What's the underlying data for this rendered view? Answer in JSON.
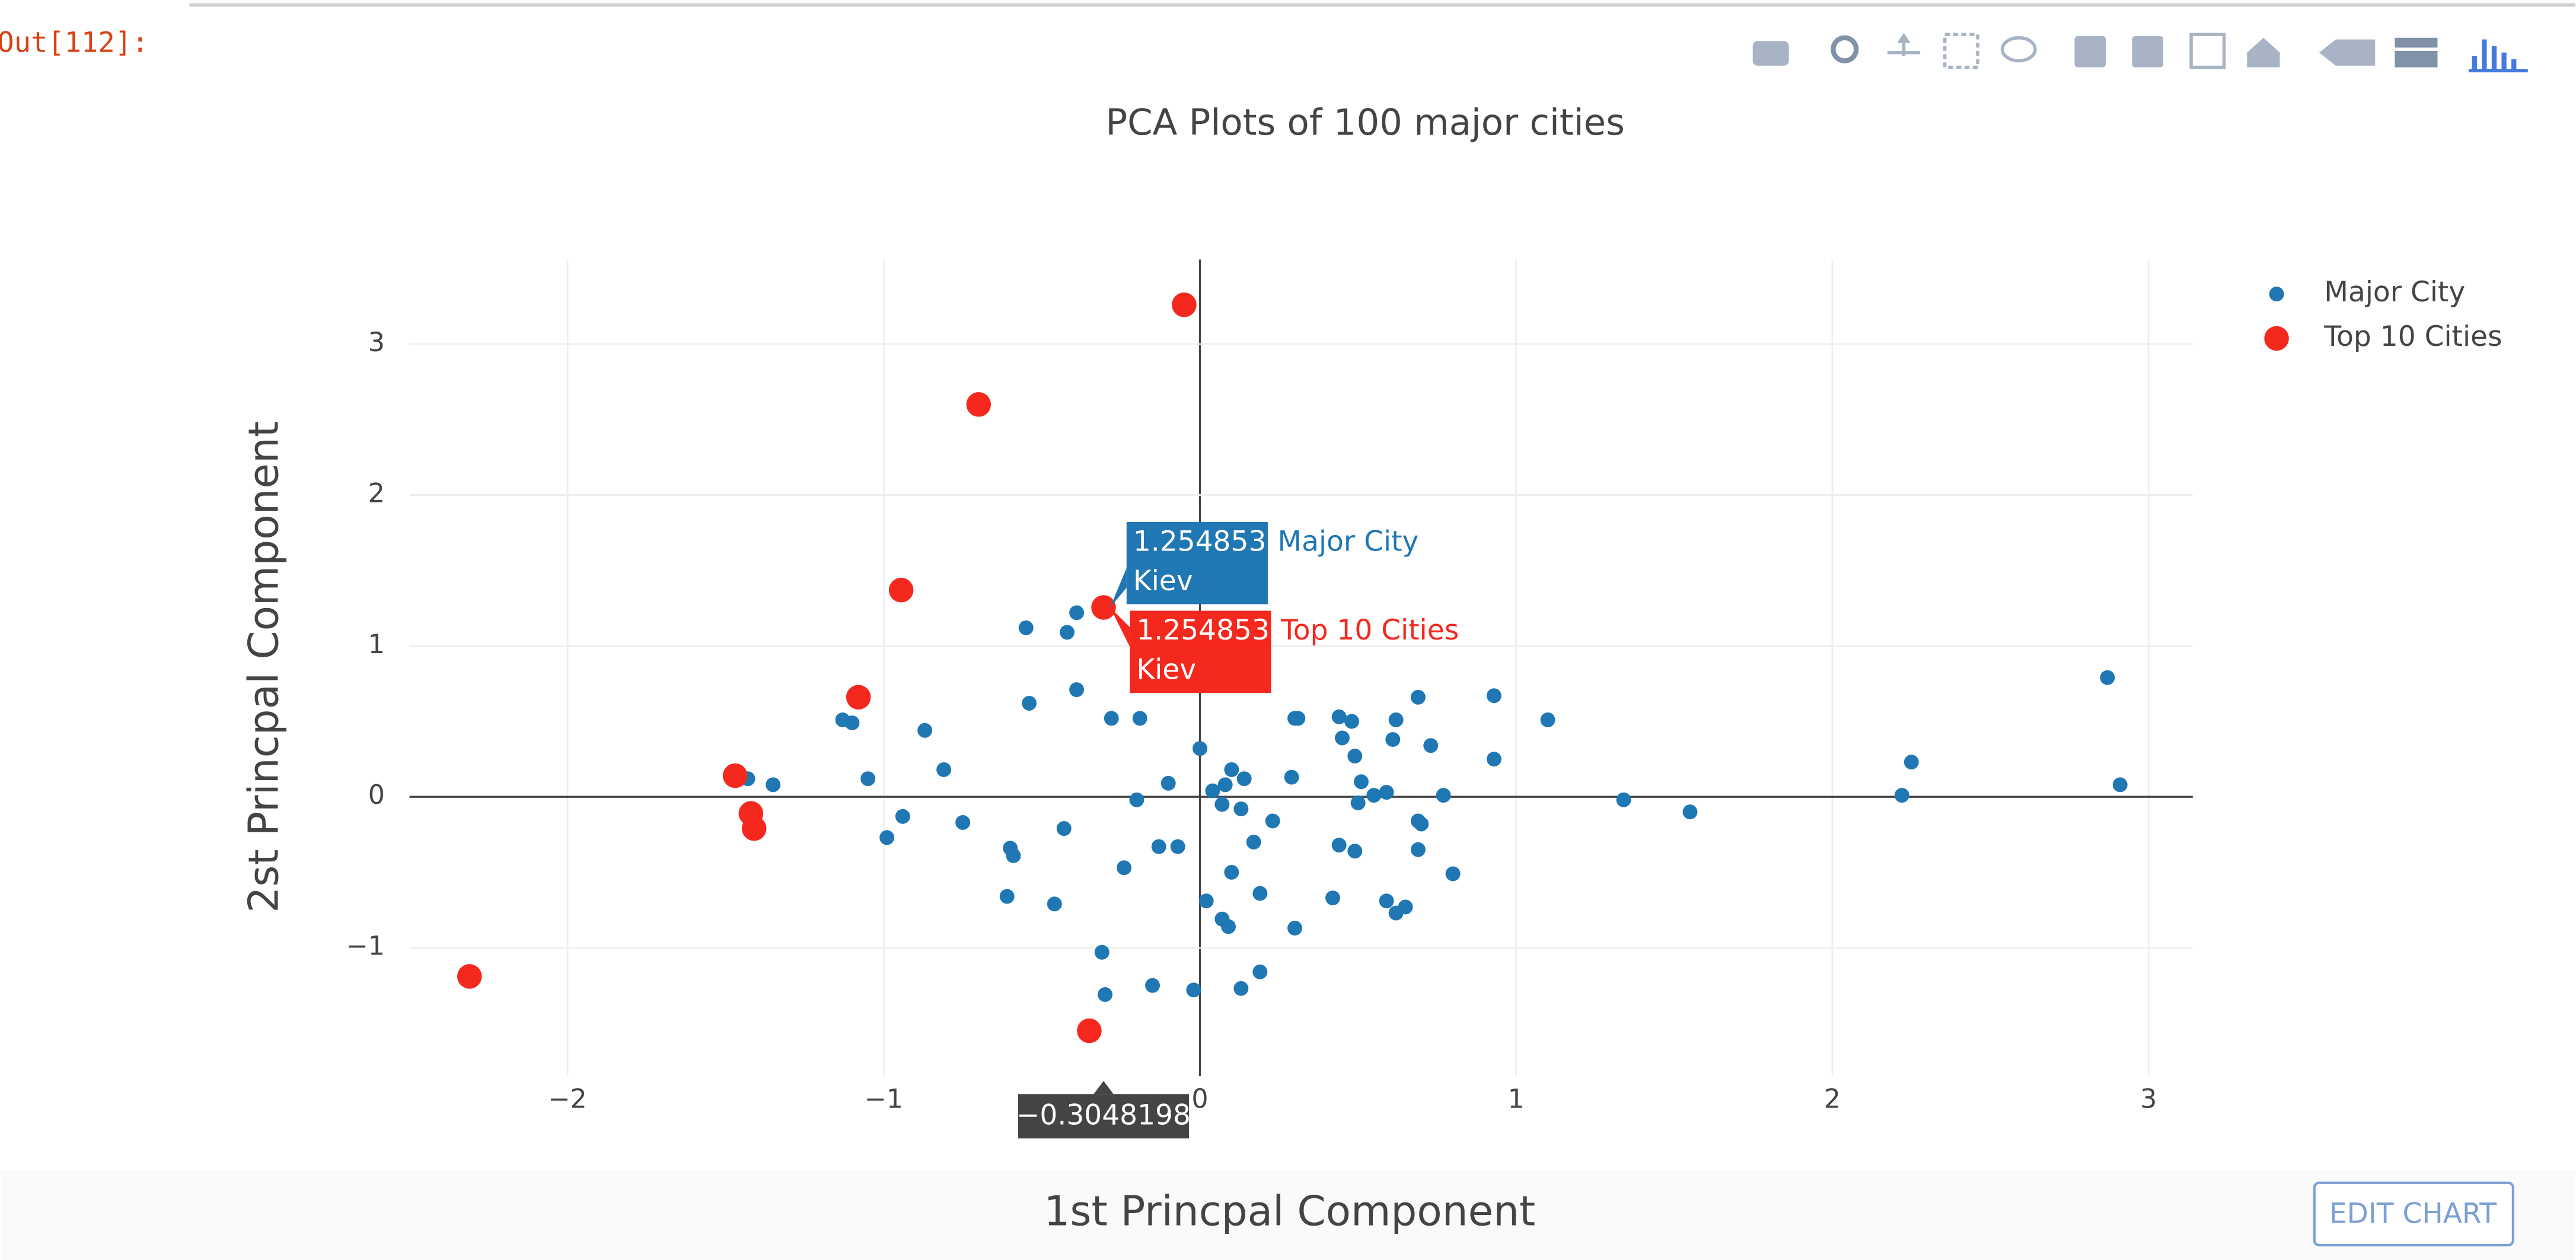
{
  "prompt": "Out[112]:",
  "button": "EDIT CHART",
  "chart_data": {
    "type": "scatter",
    "title": "PCA Plots of 100 major cities",
    "x_label": "1st Princpal Component",
    "y_label": "2st Princpal Component",
    "xlim": [
      -2.5,
      3.14
    ],
    "ylim": [
      -1.85,
      3.56
    ],
    "xticks": [
      {
        "value": -2,
        "label": "−2"
      },
      {
        "value": -1,
        "label": "−1"
      },
      0,
      1,
      2,
      3
    ],
    "yticks": [
      {
        "value": -1,
        "label": "−1"
      },
      0,
      1,
      2,
      3
    ],
    "grid": true,
    "legend": "top-right",
    "series": [
      {
        "name": "Major City",
        "color": "#1f77b4",
        "x": [
          -0.55,
          -0.39,
          -0.42,
          -0.54,
          -0.39,
          -0.28,
          -0.19,
          -1.13,
          -1.1,
          -0.87,
          -0.81,
          -1.05,
          -1.43,
          -1.35,
          -0.99,
          -0.94,
          -0.75,
          -0.6,
          -0.59,
          -0.43,
          -0.61,
          -0.46,
          -0.24,
          -0.1,
          -0.2,
          0.0,
          0.04,
          0.08,
          0.1,
          0.14,
          0.07,
          0.13,
          0.23,
          0.17,
          -0.13,
          -0.07,
          -0.31,
          -0.3,
          -0.15,
          -0.02,
          0.02,
          0.07,
          0.09,
          0.1,
          0.19,
          0.13,
          0.19,
          0.3,
          0.29,
          0.3,
          0.31,
          0.44,
          0.45,
          0.48,
          0.62,
          0.49,
          0.51,
          0.55,
          0.59,
          0.5,
          0.61,
          0.69,
          0.73,
          0.77,
          0.69,
          0.7,
          0.69,
          0.44,
          0.49,
          0.42,
          0.59,
          0.62,
          0.65,
          0.8,
          0.93,
          0.93,
          1.1,
          1.34,
          1.55,
          2.22,
          2.25,
          2.87,
          2.91,
          -0.3048198
        ],
        "values": [
          1.12,
          1.22,
          1.09,
          0.62,
          0.71,
          0.52,
          0.52,
          0.51,
          0.49,
          0.44,
          0.18,
          0.12,
          0.12,
          0.08,
          -0.27,
          -0.13,
          -0.17,
          -0.34,
          -0.39,
          -0.21,
          -0.66,
          -0.71,
          -0.47,
          0.09,
          -0.02,
          0.32,
          0.04,
          0.08,
          0.18,
          0.12,
          -0.05,
          -0.08,
          -0.16,
          -0.3,
          -0.33,
          -0.33,
          -1.03,
          -1.31,
          -1.25,
          -1.28,
          -0.69,
          -0.81,
          -0.86,
          -0.5,
          -0.64,
          -1.27,
          -1.16,
          -0.87,
          0.13,
          0.52,
          0.52,
          0.53,
          0.39,
          0.5,
          0.51,
          0.27,
          0.1,
          0.01,
          0.03,
          -0.04,
          0.38,
          0.66,
          0.34,
          0.01,
          -0.16,
          -0.18,
          -0.35,
          -0.32,
          -0.36,
          -0.67,
          -0.69,
          -0.77,
          -0.73,
          -0.51,
          0.67,
          0.25,
          0.51,
          -0.02,
          -0.1,
          0.01,
          0.23,
          0.79,
          0.08,
          1.254853
        ]
      },
      {
        "name": "Top 10 Cities",
        "color": "#f5281e",
        "x": [
          -0.05,
          -0.7,
          -0.945,
          -0.3048198,
          -1.08,
          -1.47,
          -1.42,
          -1.41,
          -2.31,
          -0.35
        ],
        "values": [
          3.26,
          2.6,
          1.37,
          1.254853,
          0.66,
          0.14,
          -0.11,
          -0.21,
          -1.19,
          -1.55
        ]
      }
    ],
    "hover": {
      "x_label": "−0.3048198",
      "points": [
        {
          "value_label": "1.254853",
          "text": "Kiev",
          "series": "Major City"
        },
        {
          "value_label": "1.254853",
          "text": "Kiev",
          "series": "Top 10 Cities"
        }
      ]
    }
  }
}
